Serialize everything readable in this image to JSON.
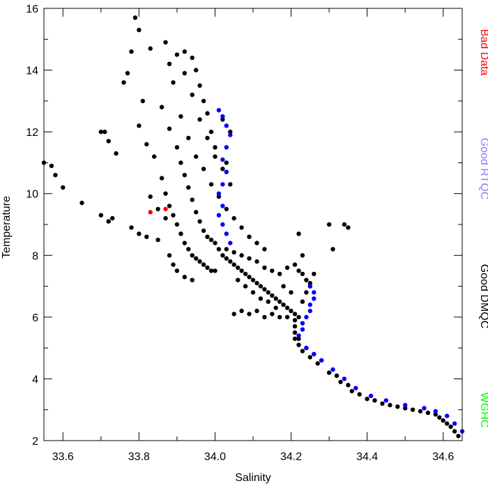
{
  "chart_data": {
    "type": "scatter",
    "title": "",
    "xlabel": "Salinity",
    "ylabel": "Temperature",
    "xlim": [
      33.55,
      34.65
    ],
    "ylim": [
      2,
      16
    ],
    "xticks": [
      33.6,
      33.8,
      34.0,
      34.2,
      34.4,
      34.6
    ],
    "xtick_labels": [
      "33.6",
      "33.8",
      "34.0",
      "34.2",
      "34.4",
      "34.6"
    ],
    "yticks": [
      2,
      4,
      6,
      8,
      10,
      12,
      14,
      16
    ],
    "ytick_labels": [
      "2",
      "4",
      "6",
      "8",
      "10",
      "12",
      "14",
      "16"
    ],
    "grid": false,
    "legend_placement": "right, vertical",
    "legend": [
      {
        "name": "Bad Data",
        "color": "#ff0000"
      },
      {
        "name": "Good RTQC",
        "color": "#8080ff"
      },
      {
        "name": "Good DMQC",
        "color": "#000000"
      },
      {
        "name": "WGHC",
        "color": "#00ff00"
      }
    ],
    "series": [
      {
        "name": "Good DMQC",
        "color": "#000000",
        "points": [
          [
            33.55,
            11.0
          ],
          [
            33.57,
            10.9
          ],
          [
            33.58,
            10.6
          ],
          [
            33.6,
            10.2
          ],
          [
            33.65,
            9.7
          ],
          [
            33.7,
            9.3
          ],
          [
            33.72,
            9.1
          ],
          [
            33.73,
            9.2
          ],
          [
            33.7,
            12.0
          ],
          [
            33.71,
            12.0
          ],
          [
            33.72,
            11.7
          ],
          [
            33.74,
            11.3
          ],
          [
            33.76,
            13.6
          ],
          [
            33.77,
            13.9
          ],
          [
            33.78,
            14.6
          ],
          [
            33.79,
            15.7
          ],
          [
            33.8,
            15.3
          ],
          [
            33.83,
            14.7
          ],
          [
            33.81,
            13.0
          ],
          [
            33.8,
            12.2
          ],
          [
            33.82,
            11.6
          ],
          [
            33.84,
            11.2
          ],
          [
            33.78,
            8.9
          ],
          [
            33.8,
            8.7
          ],
          [
            33.82,
            8.6
          ],
          [
            33.85,
            8.5
          ],
          [
            33.87,
            14.9
          ],
          [
            33.88,
            14.2
          ],
          [
            33.89,
            13.6
          ],
          [
            33.9,
            14.5
          ],
          [
            33.92,
            14.6
          ],
          [
            33.94,
            14.4
          ],
          [
            33.95,
            14.0
          ],
          [
            33.96,
            13.5
          ],
          [
            33.97,
            13.0
          ],
          [
            33.98,
            12.6
          ],
          [
            33.99,
            12.0
          ],
          [
            34.0,
            11.5
          ],
          [
            33.86,
            12.8
          ],
          [
            33.88,
            12.1
          ],
          [
            33.9,
            11.5
          ],
          [
            33.91,
            11.0
          ],
          [
            33.92,
            10.6
          ],
          [
            33.93,
            10.2
          ],
          [
            33.94,
            9.8
          ],
          [
            33.95,
            9.4
          ],
          [
            33.96,
            9.1
          ],
          [
            33.97,
            8.8
          ],
          [
            33.98,
            8.6
          ],
          [
            33.99,
            8.5
          ],
          [
            34.0,
            8.4
          ],
          [
            33.86,
            10.5
          ],
          [
            33.87,
            10.0
          ],
          [
            33.88,
            9.6
          ],
          [
            33.89,
            9.3
          ],
          [
            33.9,
            9.0
          ],
          [
            33.91,
            8.7
          ],
          [
            33.92,
            8.4
          ],
          [
            33.93,
            8.2
          ],
          [
            33.94,
            8.0
          ],
          [
            33.95,
            7.9
          ],
          [
            33.96,
            7.8
          ],
          [
            33.97,
            7.7
          ],
          [
            33.98,
            7.6
          ],
          [
            33.99,
            7.5
          ],
          [
            34.0,
            7.5
          ],
          [
            34.01,
            8.2
          ],
          [
            34.02,
            8.0
          ],
          [
            34.03,
            7.9
          ],
          [
            34.04,
            7.8
          ],
          [
            34.05,
            7.7
          ],
          [
            34.06,
            7.6
          ],
          [
            34.07,
            7.5
          ],
          [
            34.08,
            7.4
          ],
          [
            34.09,
            7.3
          ],
          [
            34.1,
            7.2
          ],
          [
            34.11,
            7.1
          ],
          [
            34.12,
            7.0
          ],
          [
            34.13,
            6.9
          ],
          [
            34.14,
            6.8
          ],
          [
            34.15,
            6.7
          ],
          [
            34.16,
            6.6
          ],
          [
            34.17,
            6.5
          ],
          [
            34.18,
            6.4
          ],
          [
            34.19,
            6.3
          ],
          [
            34.2,
            6.2
          ],
          [
            34.21,
            6.1
          ],
          [
            34.22,
            6.0
          ],
          [
            34.03,
            8.2
          ],
          [
            34.05,
            8.1
          ],
          [
            34.07,
            8.0
          ],
          [
            34.09,
            7.9
          ],
          [
            34.11,
            7.8
          ],
          [
            34.13,
            7.6
          ],
          [
            34.15,
            7.5
          ],
          [
            34.17,
            7.4
          ],
          [
            34.19,
            7.6
          ],
          [
            34.21,
            7.7
          ],
          [
            34.22,
            7.5
          ],
          [
            34.23,
            7.4
          ],
          [
            34.24,
            7.2
          ],
          [
            34.25,
            7.1
          ],
          [
            34.26,
            7.4
          ],
          [
            34.22,
            8.7
          ],
          [
            34.23,
            8.0
          ],
          [
            34.3,
            9.0
          ],
          [
            34.34,
            9.0
          ],
          [
            34.35,
            8.9
          ],
          [
            34.31,
            8.2
          ],
          [
            34.05,
            6.1
          ],
          [
            34.07,
            6.2
          ],
          [
            34.09,
            6.1
          ],
          [
            34.11,
            6.2
          ],
          [
            34.13,
            6.0
          ],
          [
            34.15,
            6.1
          ],
          [
            34.17,
            6.0
          ],
          [
            34.19,
            6.0
          ],
          [
            34.21,
            5.9
          ],
          [
            34.21,
            5.7
          ],
          [
            34.21,
            5.5
          ],
          [
            34.21,
            5.3
          ],
          [
            34.22,
            5.1
          ],
          [
            34.23,
            4.9
          ],
          [
            34.25,
            4.7
          ],
          [
            34.27,
            4.5
          ],
          [
            34.3,
            4.2
          ],
          [
            34.33,
            3.9
          ],
          [
            34.36,
            3.6
          ],
          [
            34.4,
            3.35
          ],
          [
            34.44,
            3.2
          ],
          [
            34.48,
            3.1
          ],
          [
            34.52,
            3.0
          ],
          [
            34.56,
            2.9
          ],
          [
            34.59,
            2.75
          ],
          [
            34.61,
            2.55
          ],
          [
            34.63,
            2.3
          ],
          [
            34.64,
            2.15
          ],
          [
            34.22,
            5.3
          ],
          [
            34.24,
            5.0
          ],
          [
            34.26,
            4.8
          ],
          [
            34.28,
            4.6
          ],
          [
            34.32,
            4.1
          ],
          [
            34.35,
            3.8
          ],
          [
            34.38,
            3.5
          ],
          [
            34.42,
            3.3
          ],
          [
            34.46,
            3.15
          ],
          [
            34.5,
            3.05
          ],
          [
            34.54,
            2.95
          ],
          [
            34.58,
            2.85
          ],
          [
            34.6,
            2.65
          ],
          [
            34.62,
            2.45
          ],
          [
            33.91,
            12.5
          ],
          [
            33.93,
            11.8
          ],
          [
            33.95,
            11.2
          ],
          [
            33.97,
            10.8
          ],
          [
            33.99,
            10.3
          ],
          [
            34.01,
            9.9
          ],
          [
            34.03,
            9.5
          ],
          [
            34.05,
            9.2
          ],
          [
            34.07,
            8.9
          ],
          [
            34.09,
            8.6
          ],
          [
            34.11,
            8.4
          ],
          [
            34.13,
            8.2
          ],
          [
            33.88,
            8.0
          ],
          [
            33.89,
            7.7
          ],
          [
            33.9,
            7.5
          ],
          [
            33.92,
            7.3
          ],
          [
            33.94,
            7.2
          ],
          [
            34.18,
            7.0
          ],
          [
            34.2,
            6.8
          ],
          [
            34.23,
            6.5
          ],
          [
            34.24,
            6.8
          ],
          [
            34.25,
            7.0
          ],
          [
            33.92,
            13.9
          ],
          [
            33.94,
            13.2
          ],
          [
            33.96,
            12.4
          ],
          [
            33.98,
            11.8
          ],
          [
            34.0,
            11.2
          ],
          [
            34.02,
            10.8
          ],
          [
            34.04,
            10.3
          ],
          [
            33.83,
            9.9
          ],
          [
            33.85,
            9.5
          ],
          [
            33.87,
            9.2
          ],
          [
            34.02,
            12.4
          ],
          [
            34.04,
            12.0
          ],
          [
            34.03,
            11.0
          ],
          [
            34.06,
            7.2
          ],
          [
            34.08,
            7.0
          ],
          [
            34.1,
            6.8
          ],
          [
            34.12,
            6.6
          ],
          [
            34.14,
            6.5
          ],
          [
            34.16,
            6.3
          ]
        ]
      },
      {
        "name": "Good RTQC",
        "color": "#0000ff",
        "points": [
          [
            34.01,
            12.7
          ],
          [
            34.02,
            12.5
          ],
          [
            34.03,
            12.2
          ],
          [
            34.04,
            11.9
          ],
          [
            34.03,
            11.5
          ],
          [
            34.02,
            11.1
          ],
          [
            34.03,
            10.7
          ],
          [
            34.02,
            10.3
          ],
          [
            34.01,
            10.0
          ],
          [
            34.02,
            9.6
          ],
          [
            34.01,
            9.3
          ],
          [
            34.02,
            9.0
          ],
          [
            34.03,
            8.7
          ],
          [
            34.04,
            8.4
          ],
          [
            34.25,
            7.0
          ],
          [
            34.26,
            6.8
          ],
          [
            34.26,
            6.6
          ],
          [
            34.25,
            6.4
          ],
          [
            34.25,
            6.2
          ],
          [
            34.24,
            6.0
          ],
          [
            34.23,
            5.8
          ],
          [
            34.23,
            5.6
          ],
          [
            34.22,
            5.4
          ],
          [
            34.24,
            5.0
          ],
          [
            34.26,
            4.8
          ],
          [
            34.28,
            4.6
          ],
          [
            34.31,
            4.3
          ],
          [
            34.34,
            4.0
          ],
          [
            34.37,
            3.7
          ],
          [
            34.41,
            3.45
          ],
          [
            34.45,
            3.3
          ],
          [
            34.5,
            3.15
          ],
          [
            34.55,
            3.05
          ],
          [
            34.58,
            2.95
          ],
          [
            34.61,
            2.8
          ],
          [
            34.63,
            2.55
          ],
          [
            34.65,
            2.3
          ]
        ]
      },
      {
        "name": "Bad Data",
        "color": "#ff0000",
        "points": [
          [
            33.83,
            9.4
          ],
          [
            33.87,
            9.5
          ]
        ]
      }
    ]
  }
}
